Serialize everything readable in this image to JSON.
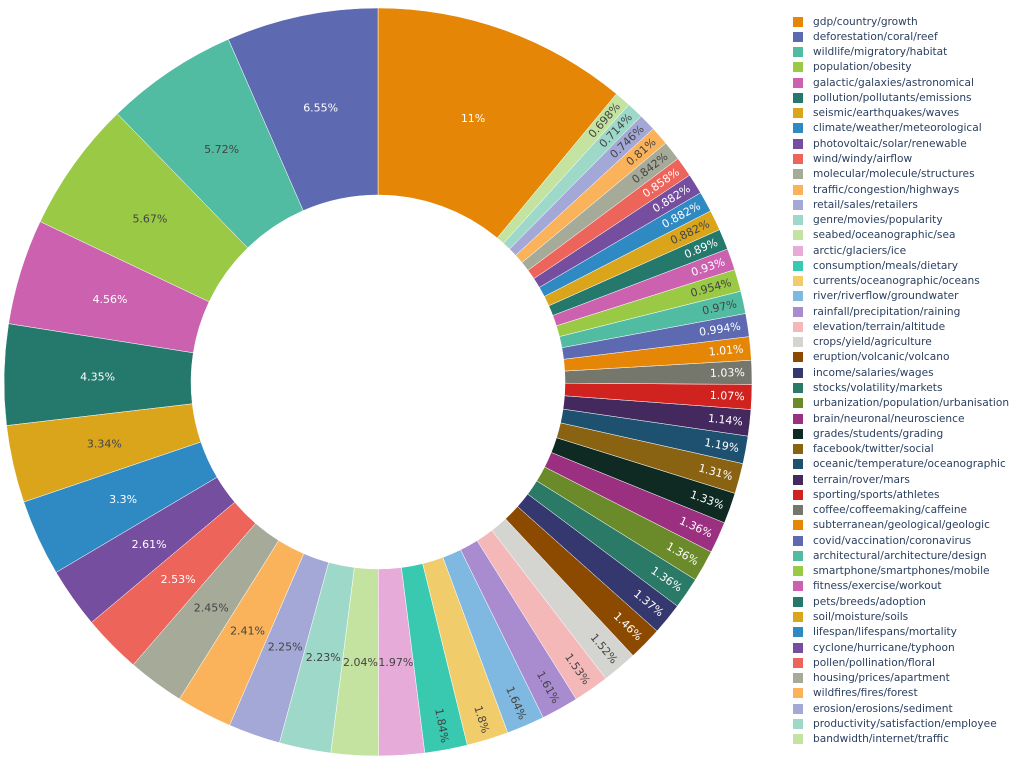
{
  "chart_data": {
    "type": "pie",
    "hole": 0.5,
    "direction": "counterclockwise",
    "legend_position": "right",
    "labels": [
      "gdp/country/growth",
      "deforestation/coral/reef",
      "wildlife/migratory/habitat",
      "population/obesity",
      "galactic/galaxies/astronomical",
      "pollution/pollutants/emissions",
      "seismic/earthquakes/waves",
      "climate/weather/meteorological",
      "photovoltaic/solar/renewable",
      "wind/windy/airflow",
      "molecular/molecule/structures",
      "traffic/congestion/highways",
      "retail/sales/retailers",
      "genre/movies/popularity",
      "seabed/oceanographic/sea",
      "arctic/glaciers/ice",
      "consumption/meals/dietary",
      "currents/oceanographic/oceans",
      "river/riverflow/groundwater",
      "rainfall/precipitation/raining",
      "elevation/terrain/altitude",
      "crops/yield/agriculture",
      "eruption/volcanic/volcano",
      "income/salaries/wages",
      "stocks/volatility/markets",
      "urbanization/population/urbanisation",
      "brain/neuronal/neuroscience",
      "grades/students/grading",
      "facebook/twitter/social",
      "oceanic/temperature/oceanographic",
      "terrain/rover/mars",
      "sporting/sports/athletes",
      "coffee/coffeemaking/caffeine",
      "subterranean/geological/geologic",
      "covid/vaccination/coronavirus",
      "architectural/architecture/design",
      "smartphone/smartphones/mobile",
      "fitness/exercise/workout",
      "pets/breeds/adoption",
      "soil/moisture/soils",
      "lifespan/lifespans/mortality",
      "cyclone/hurricane/typhoon",
      "pollen/pollination/floral",
      "housing/prices/apartment",
      "wildfires/fires/forest",
      "erosion/erosions/sediment",
      "productivity/satisfaction/employee",
      "bandwidth/internet/traffic"
    ],
    "values": [
      11,
      6.55,
      5.72,
      5.67,
      4.56,
      4.35,
      3.34,
      3.3,
      2.61,
      2.53,
      2.45,
      2.41,
      2.25,
      2.23,
      2.04,
      1.97,
      1.84,
      1.8,
      1.64,
      1.61,
      1.53,
      1.52,
      1.46,
      1.37,
      1.36,
      1.36,
      1.36,
      1.33,
      1.31,
      1.19,
      1.14,
      1.07,
      1.03,
      1.01,
      0.994,
      0.97,
      0.954,
      0.93,
      0.89,
      0.882,
      0.882,
      0.882,
      0.858,
      0.842,
      0.81,
      0.746,
      0.714,
      0.698
    ],
    "text_labels": [
      "11%",
      "6.55%",
      "5.72%",
      "5.67%",
      "4.56%",
      "4.35%",
      "3.34%",
      "3.3%",
      "2.61%",
      "2.53%",
      "2.45%",
      "2.41%",
      "2.25%",
      "2.23%",
      "2.04%",
      "1.97%",
      "1.84%",
      "1.8%",
      "1.64%",
      "1.61%",
      "1.53%",
      "1.52%",
      "1.46%",
      "1.37%",
      "1.36%",
      "1.36%",
      "1.36%",
      "1.33%",
      "1.31%",
      "1.19%",
      "1.14%",
      "1.07%",
      "1.03%",
      "1.01%",
      "0.994%",
      "0.97%",
      "0.954%",
      "0.93%",
      "0.89%",
      "0.882%",
      "0.882%",
      "0.882%",
      "0.858%",
      "0.842%",
      "0.81%",
      "0.746%",
      "0.714%",
      "0.698%"
    ],
    "colors": [
      "#E58606",
      "#5D69B1",
      "#52BCA3",
      "#99C945",
      "#CC61B0",
      "#24796C",
      "#DAA51B",
      "#2F8AC4",
      "#764E9F",
      "#ED645A",
      "#A5AA99",
      "#FAB35A",
      "#A3A8D6",
      "#9DD8C8",
      "#C4E3A0",
      "#E6ABD8",
      "#39C9B0",
      "#F1CC6B",
      "#7FB8E0",
      "#A98CD0",
      "#F5B8B8",
      "#D4D4D0",
      "#8B4A00",
      "#34386E",
      "#2A7A67",
      "#6B8A2A",
      "#9B2F80",
      "#0F2A22",
      "#8A6312",
      "#1E5170",
      "#44295E",
      "#D0221F",
      "#76776C"
    ]
  }
}
